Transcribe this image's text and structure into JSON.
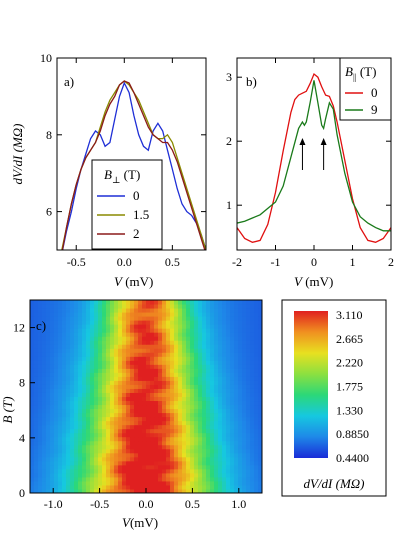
{
  "chart_data": [
    {
      "type": "line",
      "panel_label": "a)",
      "xlabel_italic": "V",
      "xlabel_unit": " (mV)",
      "ylabel": "dV/dI (MΩ)",
      "xlim": [
        -0.7,
        0.85
      ],
      "ylim": [
        5,
        10
      ],
      "xticks": [
        -0.5,
        0,
        0.5
      ],
      "xtick_labels": [
        "-0.5",
        "0.0",
        "0.5"
      ],
      "yticks": [
        6,
        8,
        10
      ],
      "ytick_labels": [
        "6",
        "8",
        "10"
      ],
      "legend_title_base": "B",
      "legend_title_sub": "⊥",
      "legend_title_unit": " (T)",
      "legend_placement": "center-left",
      "series": [
        {
          "name": "0",
          "color": "#1f2fd6",
          "x": [
            -0.65,
            -0.6,
            -0.55,
            -0.5,
            -0.45,
            -0.4,
            -0.35,
            -0.3,
            -0.25,
            -0.2,
            -0.15,
            -0.1,
            -0.05,
            0.0,
            0.05,
            0.1,
            0.15,
            0.2,
            0.25,
            0.3,
            0.35,
            0.4,
            0.45,
            0.5,
            0.55,
            0.6,
            0.65,
            0.7,
            0.75,
            0.8,
            0.85
          ],
          "y": [
            4.9,
            5.5,
            6.0,
            6.6,
            7.1,
            7.5,
            7.9,
            8.1,
            8.0,
            7.7,
            7.8,
            8.4,
            9.0,
            9.35,
            9.1,
            8.5,
            8.0,
            7.7,
            7.6,
            8.1,
            8.3,
            8.1,
            7.6,
            7.1,
            6.6,
            6.2,
            6.0,
            5.9,
            5.7,
            5.4,
            5.0
          ]
        },
        {
          "name": "1.5",
          "color": "#8a8a00",
          "x": [
            -0.65,
            -0.6,
            -0.55,
            -0.5,
            -0.45,
            -0.4,
            -0.35,
            -0.3,
            -0.25,
            -0.2,
            -0.15,
            -0.1,
            -0.05,
            0.0,
            0.05,
            0.1,
            0.15,
            0.2,
            0.25,
            0.3,
            0.35,
            0.4,
            0.45,
            0.5,
            0.55,
            0.6,
            0.65,
            0.7,
            0.75,
            0.8,
            0.85
          ],
          "y": [
            5.0,
            5.6,
            6.2,
            6.7,
            7.1,
            7.4,
            7.6,
            7.8,
            8.2,
            8.6,
            8.9,
            9.1,
            9.3,
            9.4,
            9.3,
            9.1,
            8.9,
            8.6,
            8.3,
            8.0,
            7.9,
            7.9,
            8.0,
            7.8,
            7.4,
            7.0,
            6.6,
            6.2,
            5.8,
            5.4,
            5.0
          ]
        },
        {
          "name": "2",
          "color": "#8b1a1a",
          "x": [
            -0.65,
            -0.6,
            -0.55,
            -0.5,
            -0.45,
            -0.4,
            -0.35,
            -0.3,
            -0.25,
            -0.2,
            -0.15,
            -0.1,
            -0.05,
            0.0,
            0.05,
            0.1,
            0.15,
            0.2,
            0.25,
            0.3,
            0.35,
            0.4,
            0.45,
            0.5,
            0.55,
            0.6,
            0.65,
            0.7,
            0.75,
            0.8,
            0.85
          ],
          "y": [
            4.9,
            5.6,
            6.2,
            6.7,
            7.1,
            7.4,
            7.6,
            7.8,
            8.1,
            8.5,
            8.8,
            9.0,
            9.3,
            9.4,
            9.35,
            9.1,
            8.8,
            8.5,
            8.2,
            8.0,
            7.9,
            7.8,
            7.8,
            7.6,
            7.3,
            6.9,
            6.5,
            6.1,
            5.7,
            5.3,
            4.9
          ]
        }
      ]
    },
    {
      "type": "line",
      "panel_label": "b)",
      "xlabel_italic": "V",
      "xlabel_unit": " (mV)",
      "xlim": [
        -2,
        2
      ],
      "ylim": [
        0.3,
        3.3
      ],
      "xticks": [
        -2,
        -1,
        0,
        1,
        2
      ],
      "xtick_labels": [
        "-2",
        "-1",
        "0",
        "1",
        "2"
      ],
      "yticks": [
        1,
        2,
        3
      ],
      "ytick_labels": [
        "1",
        "2",
        "3"
      ],
      "legend_title_base": "B",
      "legend_title_sub": "||",
      "legend_title_unit": " (T)",
      "legend_placement": "top-right",
      "arrows_x": [
        -0.3,
        0.25
      ],
      "series": [
        {
          "name": "0",
          "color": "#e01010",
          "x": [
            -2.0,
            -1.8,
            -1.6,
            -1.4,
            -1.2,
            -1.0,
            -0.8,
            -0.6,
            -0.5,
            -0.4,
            -0.3,
            -0.2,
            -0.1,
            0.0,
            0.1,
            0.2,
            0.3,
            0.4,
            0.5,
            0.6,
            0.8,
            1.0,
            1.2,
            1.4,
            1.6,
            1.8,
            2.0
          ],
          "y": [
            0.65,
            0.48,
            0.42,
            0.45,
            0.7,
            1.2,
            1.85,
            2.45,
            2.65,
            2.72,
            2.75,
            2.78,
            2.9,
            3.05,
            3.0,
            2.85,
            2.72,
            2.7,
            2.55,
            2.3,
            1.7,
            1.1,
            0.65,
            0.45,
            0.42,
            0.48,
            0.65
          ]
        },
        {
          "name": "9",
          "color": "#1a7a1a",
          "x": [
            -2.0,
            -1.8,
            -1.6,
            -1.4,
            -1.2,
            -1.0,
            -0.8,
            -0.6,
            -0.4,
            -0.3,
            -0.25,
            -0.2,
            -0.1,
            0.0,
            0.1,
            0.2,
            0.25,
            0.3,
            0.4,
            0.5,
            0.6,
            0.8,
            1.0,
            1.2,
            1.4,
            1.6,
            1.8,
            2.0
          ],
          "y": [
            0.72,
            0.75,
            0.8,
            0.85,
            0.95,
            1.05,
            1.3,
            1.75,
            2.2,
            2.3,
            2.25,
            2.3,
            2.6,
            2.95,
            2.6,
            2.25,
            2.2,
            2.35,
            2.6,
            2.5,
            2.1,
            1.5,
            1.05,
            0.82,
            0.72,
            0.65,
            0.6,
            0.6
          ]
        }
      ]
    },
    {
      "type": "heatmap",
      "panel_label": "c)",
      "xlabel_italic": "V",
      "xlabel_unit": "(mV)",
      "ylabel": "B (T)",
      "xlim": [
        -1.25,
        1.25
      ],
      "ylim": [
        0,
        14
      ],
      "xticks": [
        -1.0,
        -0.5,
        0.0,
        0.5,
        1.0
      ],
      "xtick_labels": [
        "-1.0",
        "-0.5",
        "0.0",
        "0.5",
        "1.0"
      ],
      "yticks": [
        0,
        4,
        8,
        12
      ],
      "ytick_labels": [
        "0",
        "4",
        "8",
        "12"
      ],
      "colorbar_title": "dV/dI (MΩ)",
      "colorbar_range": [
        0.44,
        3.11
      ],
      "colorbar_tick_labels": [
        "3.110",
        "2.665",
        "2.220",
        "1.775",
        "1.330",
        "0.8850",
        "0.4400"
      ],
      "colormap_stops": [
        "#1a2cd8",
        "#1e88e8",
        "#16c8e0",
        "#2cd878",
        "#8ce040",
        "#e8e020",
        "#f09020",
        "#e02020"
      ],
      "peak_value_at_zero_field": 3.0,
      "peak_value_at_max_field": 2.6,
      "peak_width_at_zero_field_mV": 0.5,
      "peak_width_at_max_field_mV": 0.3
    }
  ]
}
